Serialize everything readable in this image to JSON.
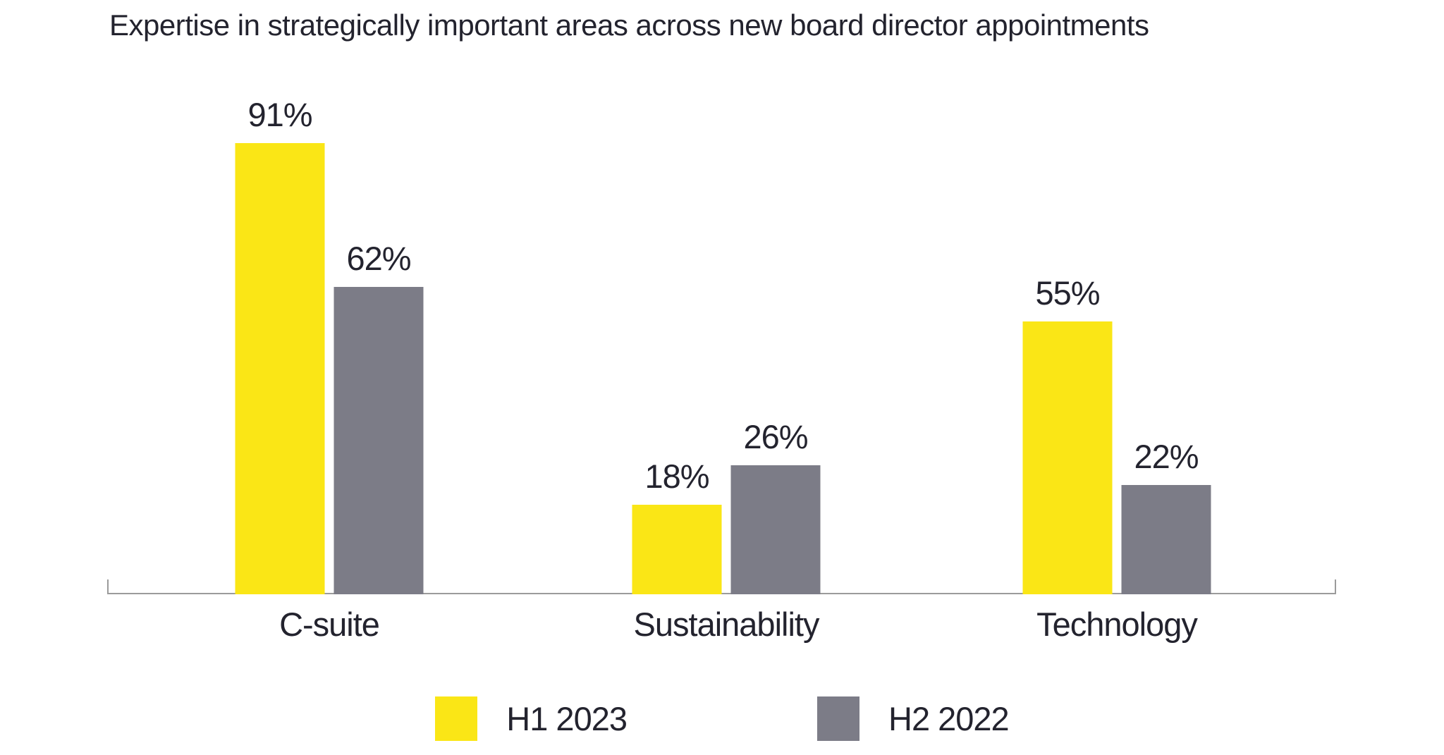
{
  "title": "Expertise in strategically important areas across new board director appointments",
  "chart_data": {
    "type": "bar",
    "title": "Expertise in strategically important areas across new board director appointments",
    "categories": [
      "C-suite",
      "Sustainability",
      "Technology"
    ],
    "series": [
      {
        "name": "H1 2023",
        "color": "#FAE616",
        "values": [
          91,
          18,
          55
        ]
      },
      {
        "name": "H2 2022",
        "color": "#7C7C87",
        "values": [
          62,
          26,
          22
        ]
      }
    ],
    "value_suffix": "%",
    "data_labels": [
      [
        "91%",
        "18%",
        "55%"
      ],
      [
        "62%",
        "26%",
        "22%"
      ]
    ],
    "xlabel": "",
    "ylabel": "",
    "ylim": [
      0,
      100
    ],
    "grid": false,
    "y_axis_ticks_visible": false,
    "legend_position": "bottom",
    "axis_color": "#9B9B9B",
    "text_color": "#23232E",
    "background_color": "#FFFFFF"
  }
}
